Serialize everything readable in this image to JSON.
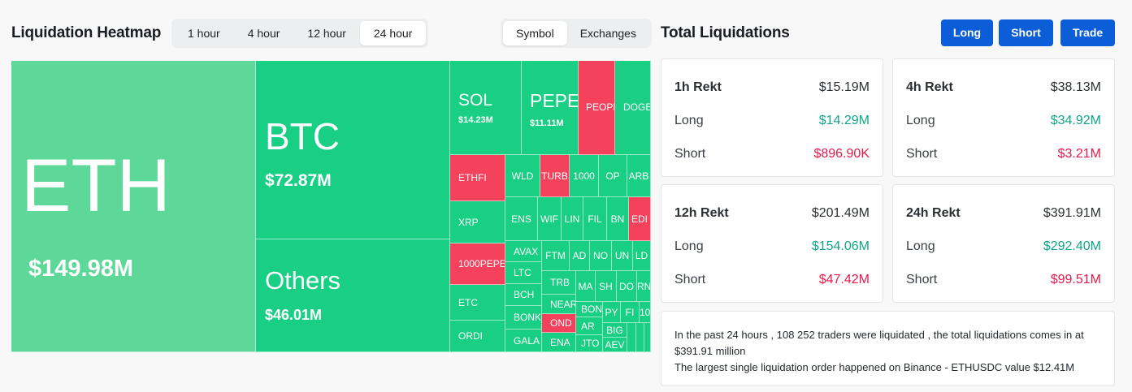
{
  "heatmap": {
    "title": "Liquidation Heatmap",
    "time_options": [
      "1 hour",
      "4 hour",
      "12 hour",
      "24 hour"
    ],
    "time_selected": "24 hour",
    "view_options": [
      "Symbol",
      "Exchanges"
    ],
    "view_selected": "Symbol",
    "colors": {
      "long": "#19cf83",
      "long_light": "#5dd898",
      "short": "#f4425c"
    },
    "tiles": {
      "eth": {
        "symbol": "ETH",
        "value": "$149.98M"
      },
      "btc": {
        "symbol": "BTC",
        "value": "$72.87M"
      },
      "others": {
        "symbol": "Others",
        "value": "$46.01M"
      },
      "sol": {
        "symbol": "SOL",
        "value": "$14.23M"
      },
      "pepe": {
        "symbol": "PEPE",
        "value": "$11.11M"
      },
      "peopl": {
        "symbol": "PEOPL"
      },
      "doge": {
        "symbol": "DOGE"
      },
      "ethfi": {
        "symbol": "ETHFI"
      },
      "xrp": {
        "symbol": "XRP"
      },
      "pepe1000": {
        "symbol": "1000PEPE"
      },
      "etc": {
        "symbol": "ETC"
      },
      "ordi": {
        "symbol": "ORDI"
      },
      "wld": {
        "symbol": "WLD"
      },
      "turbo": {
        "symbol": "TURB"
      },
      "k1000": {
        "symbol": "1000"
      },
      "op": {
        "symbol": "OP"
      },
      "arb": {
        "symbol": "ARB"
      },
      "ens": {
        "symbol": "ENS"
      },
      "wif": {
        "symbol": "WIF"
      },
      "link": {
        "symbol": "LIN"
      },
      "fil": {
        "symbol": "FIL"
      },
      "bnb": {
        "symbol": "BN"
      },
      "edu": {
        "symbol": "EDI"
      },
      "avax": {
        "symbol": "AVAX"
      },
      "ltc": {
        "symbol": "LTC"
      },
      "bch": {
        "symbol": "BCH"
      },
      "bonk": {
        "symbol": "BONK"
      },
      "gala": {
        "symbol": "GALA"
      },
      "ftm": {
        "symbol": "FTM"
      },
      "ada": {
        "symbol": "AD"
      },
      "near_s": {
        "symbol": "NO"
      },
      "uni": {
        "symbol": "UN"
      },
      "ldo": {
        "symbol": "LD"
      },
      "trb": {
        "symbol": "TRB"
      },
      "near": {
        "symbol": "NEAR"
      },
      "ondo": {
        "symbol": "OND"
      },
      "ena": {
        "symbol": "ENA"
      },
      "mana": {
        "symbol": "MA"
      },
      "shib": {
        "symbol": "SH"
      },
      "dot": {
        "symbol": "DO"
      },
      "rn": {
        "symbol": "RN"
      },
      "bond": {
        "symbol": "BON"
      },
      "ar": {
        "symbol": "AR"
      },
      "jto": {
        "symbol": "JTO"
      },
      "py": {
        "symbol": "PY"
      },
      "fi": {
        "symbol": "FI"
      },
      "k10": {
        "symbol": "10"
      },
      "big": {
        "symbol": "BIG"
      },
      "aev": {
        "symbol": "AEV"
      }
    }
  },
  "totals": {
    "title": "Total Liquidations",
    "buttons": {
      "long": "Long",
      "short": "Short",
      "trade": "Trade"
    },
    "cards": [
      {
        "period": "1h Rekt",
        "total": "$15.19M",
        "long_label": "Long",
        "long": "$14.29M",
        "short_label": "Short",
        "short": "$896.90K"
      },
      {
        "period": "4h Rekt",
        "total": "$38.13M",
        "long_label": "Long",
        "long": "$34.92M",
        "short_label": "Short",
        "short": "$3.21M"
      },
      {
        "period": "12h Rekt",
        "total": "$201.49M",
        "long_label": "Long",
        "long": "$154.06M",
        "short_label": "Short",
        "short": "$47.42M"
      },
      {
        "period": "24h Rekt",
        "total": "$391.91M",
        "long_label": "Long",
        "long": "$292.40M",
        "short_label": "Short",
        "short": "$99.51M"
      }
    ],
    "summary_line1": "In the past 24 hours , 108 252 traders were liquidated , the total liquidations comes in at $391.91 million",
    "summary_line2": "The largest single liquidation order happened on Binance - ETHUSDC value $12.41M",
    "colors": {
      "accent": "#0b5ed7",
      "long": "#12a58a",
      "short": "#e8194a"
    }
  }
}
